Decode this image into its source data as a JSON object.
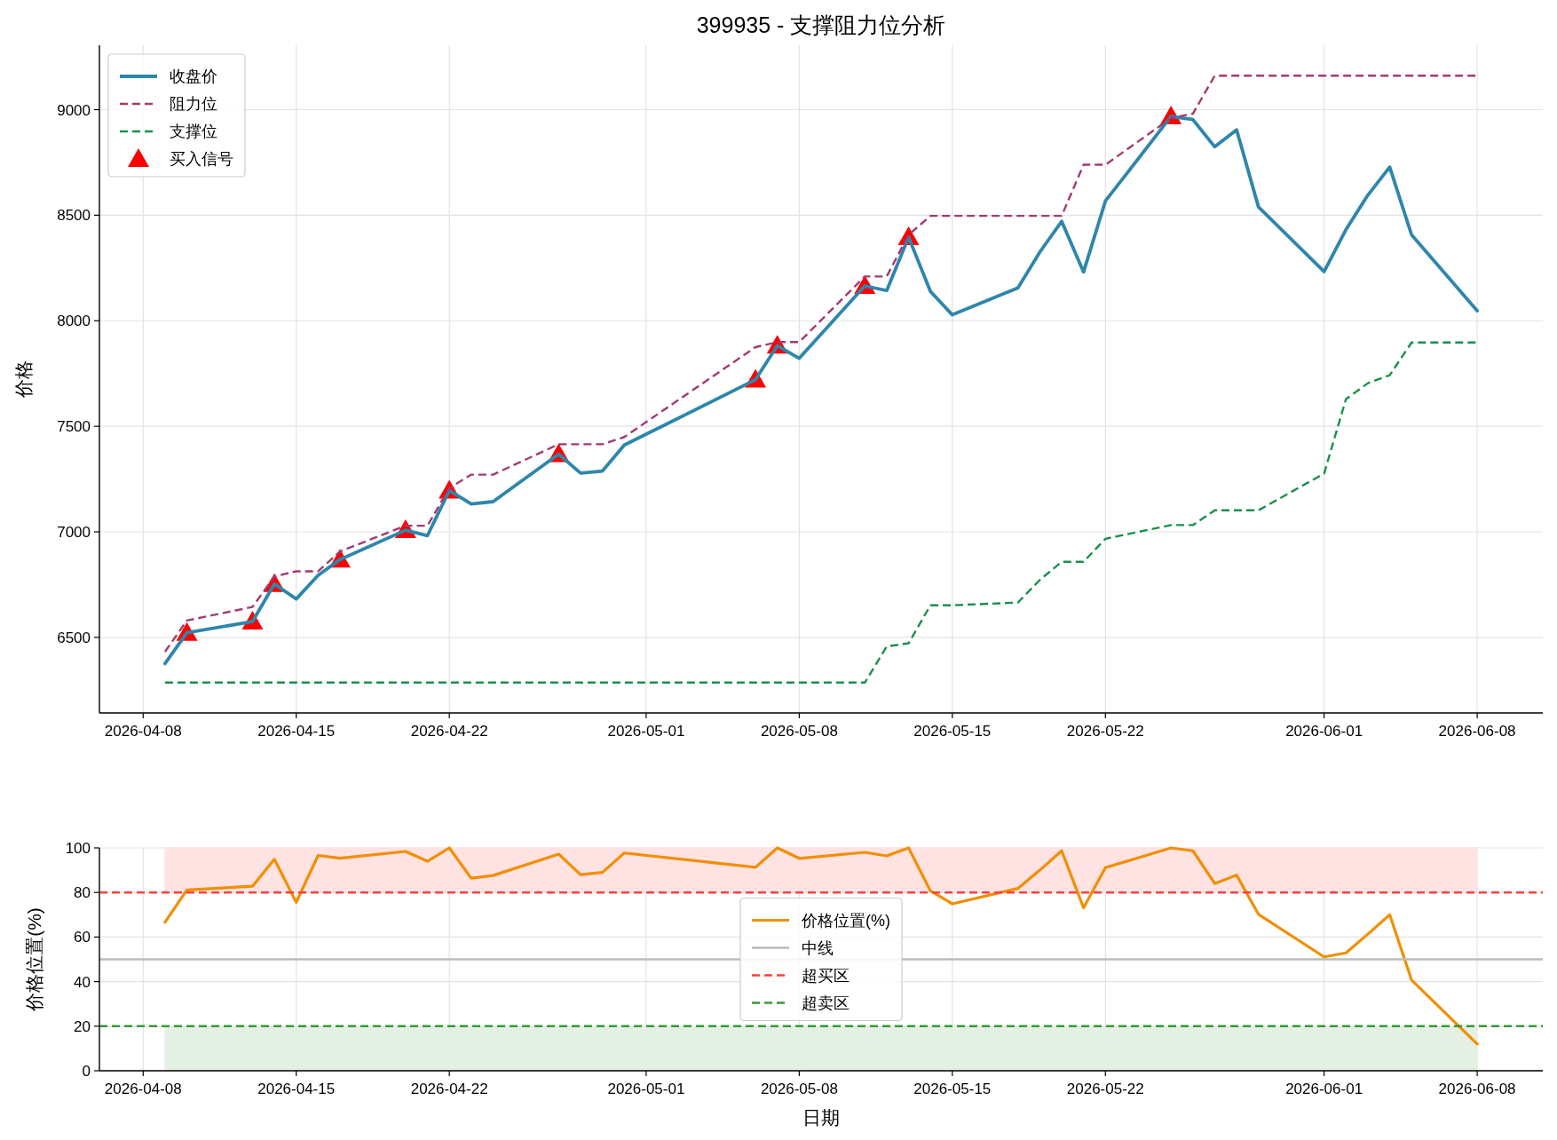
{
  "chart_data": [
    {
      "type": "line",
      "title": "399935 - 支撑阻力位分析",
      "ylabel": "价格",
      "x": [
        "2026-04-09",
        "2026-04-10",
        "2026-04-13",
        "2026-04-14",
        "2026-04-15",
        "2026-04-16",
        "2026-04-17",
        "2026-04-20",
        "2026-04-21",
        "2026-04-22",
        "2026-04-23",
        "2026-04-24",
        "2026-04-27",
        "2026-04-28",
        "2026-04-29",
        "2026-04-30",
        "2026-05-06",
        "2026-05-07",
        "2026-05-08",
        "2026-05-11",
        "2026-05-12",
        "2026-05-13",
        "2026-05-14",
        "2026-05-15",
        "2026-05-18",
        "2026-05-19",
        "2026-05-20",
        "2026-05-21",
        "2026-05-22",
        "2026-05-25",
        "2026-05-26",
        "2026-05-27",
        "2026-05-28",
        "2026-05-29",
        "2026-06-01",
        "2026-06-02",
        "2026-06-03",
        "2026-06-04",
        "2026-06-05",
        "2026-06-08"
      ],
      "series": [
        {
          "name": "收盘价",
          "color": "#2e86ab",
          "line_style": "solid",
          "values": [
            6376,
            6522,
            6575,
            6753,
            6682,
            6794,
            6869,
            7008,
            6982,
            7196,
            7132,
            7143,
            7368,
            7278,
            7288,
            7411,
            7721,
            7882,
            7822,
            8165,
            8143,
            8396,
            8139,
            8028,
            8156,
            8325,
            8471,
            8231,
            8567,
            8968,
            8953,
            8824,
            8904,
            8539,
            8233,
            8432,
            8595,
            8728,
            8407,
            8047
          ]
        },
        {
          "name": "阻力位",
          "color": "#a23b72",
          "line_style": "dashed",
          "values": [
            6432,
            6580,
            6644,
            6789,
            6813,
            6813,
            6907,
            7029,
            7029,
            7207,
            7271,
            7271,
            7415,
            7415,
            7415,
            7449,
            7875,
            7899,
            7899,
            8210,
            8210,
            8407,
            8497,
            8497,
            8497,
            8497,
            8497,
            8739,
            8739,
            8960,
            8981,
            9161,
            9161,
            9161,
            9161,
            9161,
            9161,
            9161,
            9161,
            9161
          ]
        },
        {
          "name": "支撑位",
          "color": "#1b8f4d",
          "line_style": "dashed",
          "values": [
            6286,
            6286,
            6286,
            6286,
            6286,
            6286,
            6286,
            6286,
            6286,
            6286,
            6286,
            6286,
            6286,
            6286,
            6286,
            6286,
            6286,
            6286,
            6286,
            6286,
            6457,
            6472,
            6652,
            6652,
            6665,
            6772,
            6858,
            6858,
            6967,
            7032,
            7032,
            7102,
            7102,
            7102,
            7276,
            7629,
            7704,
            7742,
            7897,
            7897
          ]
        },
        {
          "name": "买入信号",
          "type": "scatter",
          "marker": "triangle",
          "color": "#ff0000",
          "x": [
            "2026-04-10",
            "2026-04-13",
            "2026-04-14",
            "2026-04-17",
            "2026-04-20",
            "2026-04-22",
            "2026-04-27",
            "2026-05-06",
            "2026-05-07",
            "2026-05-11",
            "2026-05-13",
            "2026-05-25"
          ],
          "values": [
            6522,
            6575,
            6753,
            6869,
            7008,
            7196,
            7368,
            7721,
            7882,
            8165,
            8396,
            8968
          ]
        }
      ],
      "xlim": [
        "2026-04-06",
        "2026-06-11"
      ],
      "xticks": [
        "2026-04-08",
        "2026-04-15",
        "2026-04-22",
        "2026-05-01",
        "2026-05-08",
        "2026-05-15",
        "2026-05-22",
        "2026-06-01",
        "2026-06-08"
      ],
      "ylim": [
        6142,
        9305
      ],
      "yticks": [
        6500,
        7000,
        7500,
        8000,
        8500,
        9000
      ],
      "grid": true,
      "legend": "top left"
    },
    {
      "type": "line",
      "xlabel": "日期",
      "ylabel": "价格位置(%)",
      "x": [
        "2026-04-09",
        "2026-04-10",
        "2026-04-13",
        "2026-04-14",
        "2026-04-15",
        "2026-04-16",
        "2026-04-17",
        "2026-04-20",
        "2026-04-21",
        "2026-04-22",
        "2026-04-23",
        "2026-04-24",
        "2026-04-27",
        "2026-04-28",
        "2026-04-29",
        "2026-04-30",
        "2026-05-06",
        "2026-05-07",
        "2026-05-08",
        "2026-05-11",
        "2026-05-12",
        "2026-05-13",
        "2026-05-14",
        "2026-05-15",
        "2026-05-18",
        "2026-05-19",
        "2026-05-20",
        "2026-05-21",
        "2026-05-22",
        "2026-05-25",
        "2026-05-26",
        "2026-05-27",
        "2026-05-28",
        "2026-05-29",
        "2026-06-01",
        "2026-06-02",
        "2026-06-03",
        "2026-06-04",
        "2026-06-05",
        "2026-06-08"
      ],
      "series": [
        {
          "name": "价格位置(%)",
          "color": "#f18f01",
          "line_style": "solid",
          "values": [
            66.7,
            81.1,
            82.8,
            94.9,
            75.6,
            96.6,
            95.4,
            98.4,
            94.0,
            100,
            86.4,
            87.6,
            97.2,
            88.0,
            89.0,
            97.7,
            91.3,
            100,
            95.3,
            98.0,
            96.4,
            100,
            80.7,
            74.9,
            81.8,
            90,
            98.7,
            73.1,
            91.1,
            100,
            98.7,
            84.0,
            87.8,
            70.2,
            51.1,
            52.9,
            61.3,
            70.0,
            40.7,
            12.0
          ]
        }
      ],
      "ref_lines": [
        {
          "axis": "y",
          "value": 50,
          "label": "中线",
          "color": "#bbbbbb",
          "line_style": "solid"
        },
        {
          "axis": "y",
          "value": 80,
          "label": "超买区",
          "color": "#ff4040",
          "line_style": "dashed"
        },
        {
          "axis": "y",
          "value": 20,
          "label": "超卖区",
          "color": "#359a35",
          "line_style": "dashed"
        }
      ],
      "bands": [
        {
          "axis": "y",
          "from": 80,
          "to": 100,
          "color": "#ffe2e2"
        },
        {
          "axis": "y",
          "from": 0,
          "to": 20,
          "color": "#e5f0e4"
        }
      ],
      "xlim": [
        "2026-04-06",
        "2026-06-11"
      ],
      "xticks": [
        "2026-04-08",
        "2026-04-15",
        "2026-04-22",
        "2026-05-01",
        "2026-05-08",
        "2026-05-15",
        "2026-05-22",
        "2026-06-01",
        "2026-06-08"
      ],
      "ylim": [
        0,
        100
      ],
      "yticks": [
        0,
        20,
        40,
        60,
        80,
        100
      ],
      "grid": true,
      "legend": "center"
    }
  ]
}
